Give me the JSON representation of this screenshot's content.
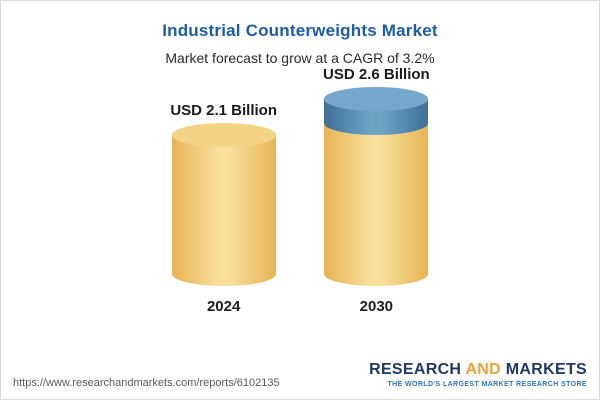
{
  "header": {
    "title": "Industrial Counterweights Market",
    "subtitle": "Market forecast to grow at a CAGR of 3.2%"
  },
  "chart_data": {
    "type": "bar",
    "categories": [
      "2024",
      "2030"
    ],
    "values": [
      2.1,
      2.6
    ],
    "value_labels": [
      "USD 2.1 Billion",
      "USD 2.6 Billion"
    ],
    "title": "Industrial Counterweights Market",
    "subtitle": "Market forecast to grow at a CAGR of 3.2%",
    "xlabel": "",
    "ylabel": "",
    "unit": "USD Billion",
    "legend_position": "none",
    "grid": false,
    "colors": {
      "bar_yellow": "#F5CE6E",
      "bar_blue": "#4A84B0"
    }
  },
  "footer": {
    "url": "https://www.researchandmarkets.com/reports/6102135",
    "logo": {
      "research": "RESEARCH",
      "and": "AND",
      "markets": "MARKETS",
      "tagline": "THE WORLD'S LARGEST MARKET RESEARCH STORE"
    }
  }
}
